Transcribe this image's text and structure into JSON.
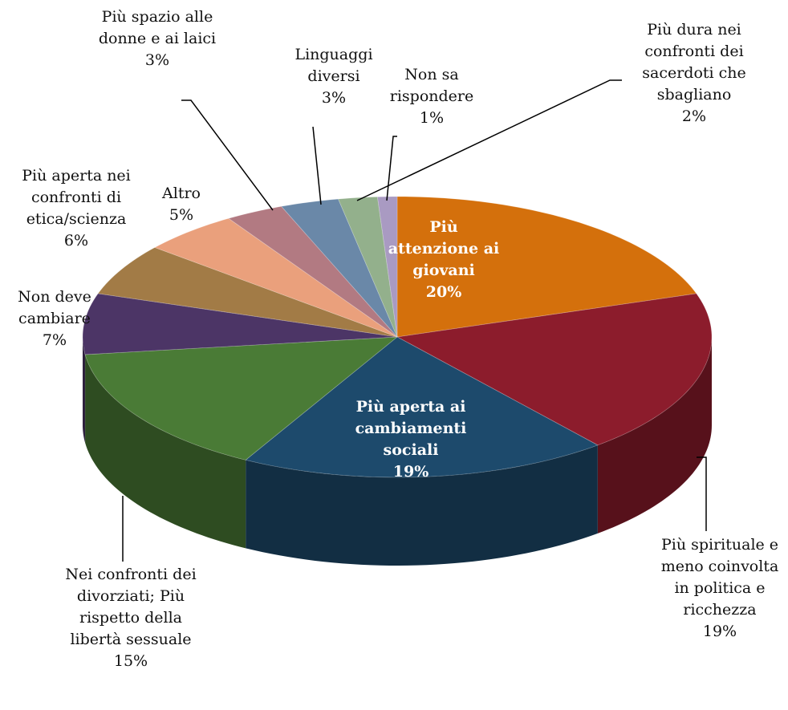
{
  "chart_data": {
    "type": "pie3d",
    "categories": [
      "Più attenzione ai giovani",
      "Più spirituale e meno coinvolta in politica e ricchezza",
      "Più aperta ai cambiamenti sociali",
      "Nei confronti dei divorziati; Più rispetto della libertà sessuale",
      "Non deve cambiare",
      "Più aperta nei confronti di etica/scienza",
      "Altro",
      "Più spazio alle donne e ai laici",
      "Linguaggi diversi",
      "Più dura nei confronti dei sacerdoti che sbagliano",
      "Non sa rispondere"
    ],
    "values": [
      20,
      19,
      19,
      15,
      7,
      6,
      5,
      3,
      3,
      2,
      1
    ],
    "value_labels": [
      "20%",
      "19%",
      "19%",
      "15%",
      "7%",
      "6%",
      "5%",
      "3%",
      "3%",
      "2%",
      "1%"
    ],
    "colors": [
      "#d4700c",
      "#8c1c2c",
      "#1d4a6c",
      "#4a7b36",
      "#4c3566",
      "#a27b46",
      "#eaa07c",
      "#b27a82",
      "#6a88a8",
      "#93b08c",
      "#a99ac2"
    ]
  }
}
